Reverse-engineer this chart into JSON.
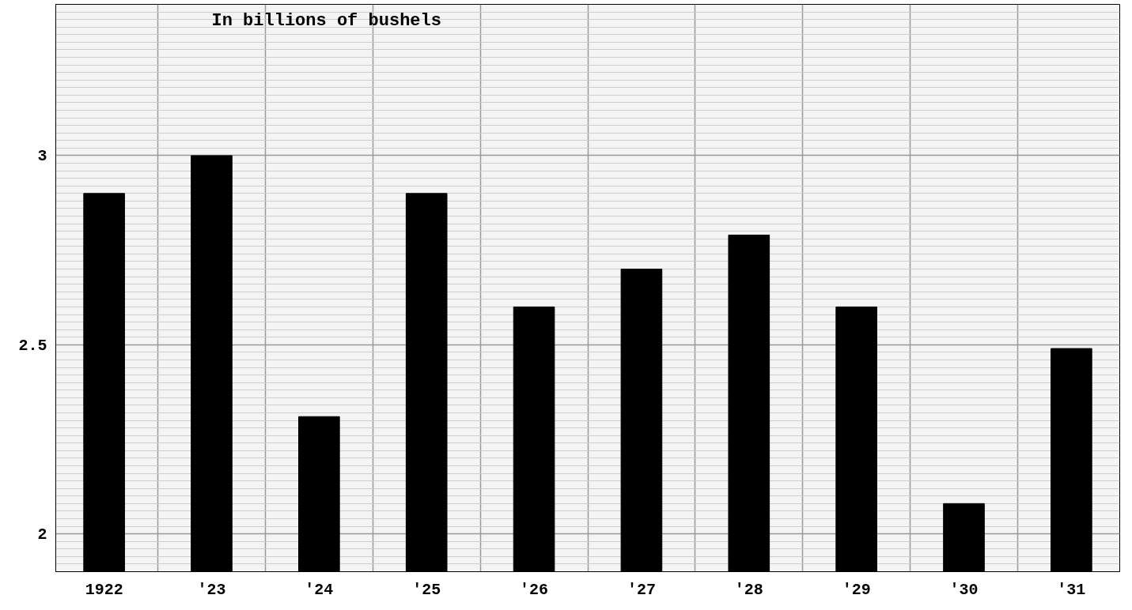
{
  "chart_data": {
    "type": "bar",
    "categories": [
      "1922",
      "'23",
      "'24",
      "'25",
      "'26",
      "'27",
      "'28",
      "'29",
      "'30",
      "'31"
    ],
    "values": [
      2.9,
      3.0,
      2.31,
      2.9,
      2.6,
      2.7,
      2.79,
      2.6,
      2.08,
      2.49
    ],
    "color": "#000000",
    "ylim": [
      1.9,
      3.4
    ],
    "yticks": [
      2,
      2.5,
      3
    ],
    "grid": true,
    "annotations": [
      "In billions of bushels"
    ]
  }
}
